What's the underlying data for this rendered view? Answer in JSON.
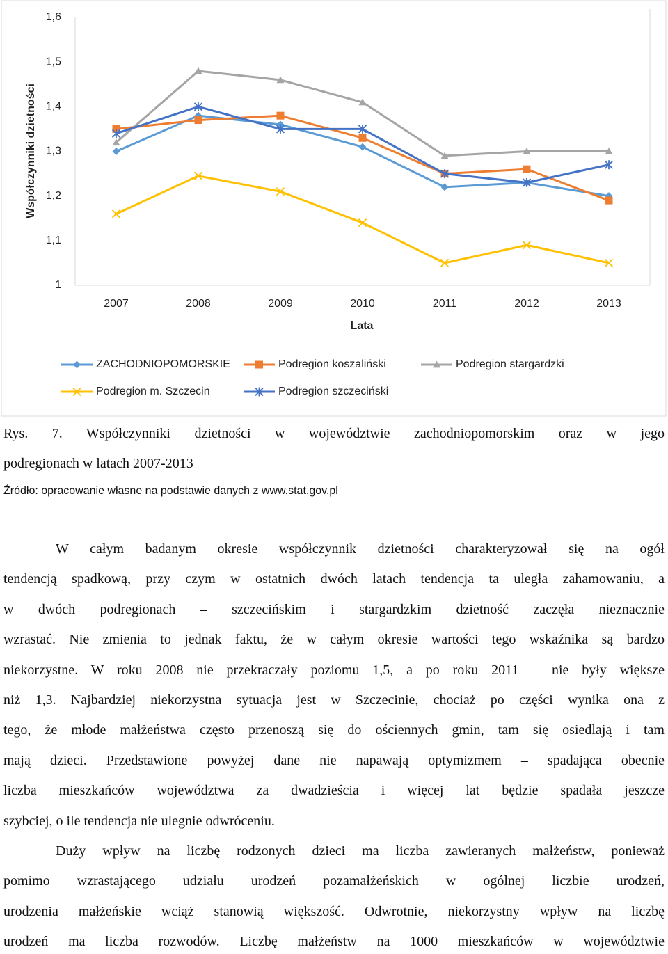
{
  "chart_data": {
    "type": "line",
    "xlabel": "Lata",
    "ylabel": "Współczynniki dzietności",
    "categories": [
      "2007",
      "2008",
      "2009",
      "2010",
      "2011",
      "2012",
      "2013"
    ],
    "ylim": [
      1,
      1.6
    ],
    "yticks": [
      1,
      {
        "value": 1.1,
        "label": "1,1"
      },
      {
        "value": 1.2,
        "label": "1,2"
      },
      {
        "value": 1.3,
        "label": "1,3"
      },
      {
        "value": 1.4,
        "label": "1,4"
      },
      {
        "value": 1.5,
        "label": "1,5"
      },
      {
        "value": 1.6,
        "label": "1,6"
      }
    ],
    "grid": false,
    "series": [
      {
        "name": "ZACHODNIOPOMORSKIE",
        "color": "#5b9bd5",
        "marker": "diamond",
        "values": [
          1.3,
          1.38,
          1.36,
          1.31,
          1.22,
          1.23,
          1.2
        ]
      },
      {
        "name": "Podregion koszaliński",
        "color": "#ed7d31",
        "marker": "square",
        "values": [
          1.35,
          1.37,
          1.38,
          1.33,
          1.25,
          1.26,
          1.19
        ]
      },
      {
        "name": "Podregion stargardzki",
        "color": "#a5a5a5",
        "marker": "triangle",
        "values": [
          1.32,
          1.48,
          1.46,
          1.41,
          1.29,
          1.3,
          1.3
        ]
      },
      {
        "name": "Podregion m. Szczecin",
        "color": "#ffc000",
        "marker": "x",
        "values": [
          1.16,
          1.245,
          1.21,
          1.14,
          1.05,
          1.09,
          1.05
        ]
      },
      {
        "name": "Podregion szczeciński",
        "color": "#4472c4",
        "marker": "star",
        "values": [
          1.34,
          1.4,
          1.35,
          1.35,
          1.25,
          1.23,
          1.27
        ]
      }
    ]
  },
  "caption": {
    "lines": [
      "Rys. 7. Współczynniki dzietności w województwie zachodniopomorskim oraz w jego",
      "podregionach w latach 2007-2013"
    ]
  },
  "source": "Źródło: opracowanie własne na podstawie danych z www.stat.gov.pl",
  "paragraphs": [
    {
      "lines": [
        "W całym badanym okresie współczynnik dzietności charakteryzował się na ogół",
        "tendencją spadkową, przy czym w ostatnich dwóch latach tendencja ta uległa zahamowaniu, a",
        "w dwóch podregionach – szczecińskim i stargardzkim dzietność zaczęła nieznacznie",
        "wzrastać. Nie zmienia to jednak faktu, że w całym okresie wartości tego wskaźnika są bardzo",
        "niekorzystne. W roku 2008 nie przekraczały poziomu 1,5, a po roku 2011 – nie były większe",
        "niż 1,3. Najbardziej niekorzystna sytuacja jest w Szczecinie, chociaż po części wynika ona z",
        "tego, że młode małżeństwa często przenoszą się do ościennych gmin, tam się osiedlają i tam",
        "mają dzieci. Przedstawione powyżej dane nie napawają optymizmem – spadająca obecnie",
        "liczba mieszkańców województwa za dwadzieścia i więcej lat będzie spadała jeszcze",
        "szybciej, o ile tendencja nie ulegnie odwróceniu."
      ]
    },
    {
      "lines": [
        "Duży wpływ na liczbę rodzonych dzieci ma liczba zawieranych małżeństw, ponieważ",
        "pomimo wzrastającego udziału urodzeń pozamałżeńskich w ogólnej liczbie urodzeń,",
        "urodzenia małżeńskie wciąż stanowią większość. Odwrotnie, niekorzystny wpływ na liczbę",
        "urodzeń ma liczba rozwodów. Liczbę małżeństw na 1000 mieszkańców w województwie"
      ]
    }
  ]
}
